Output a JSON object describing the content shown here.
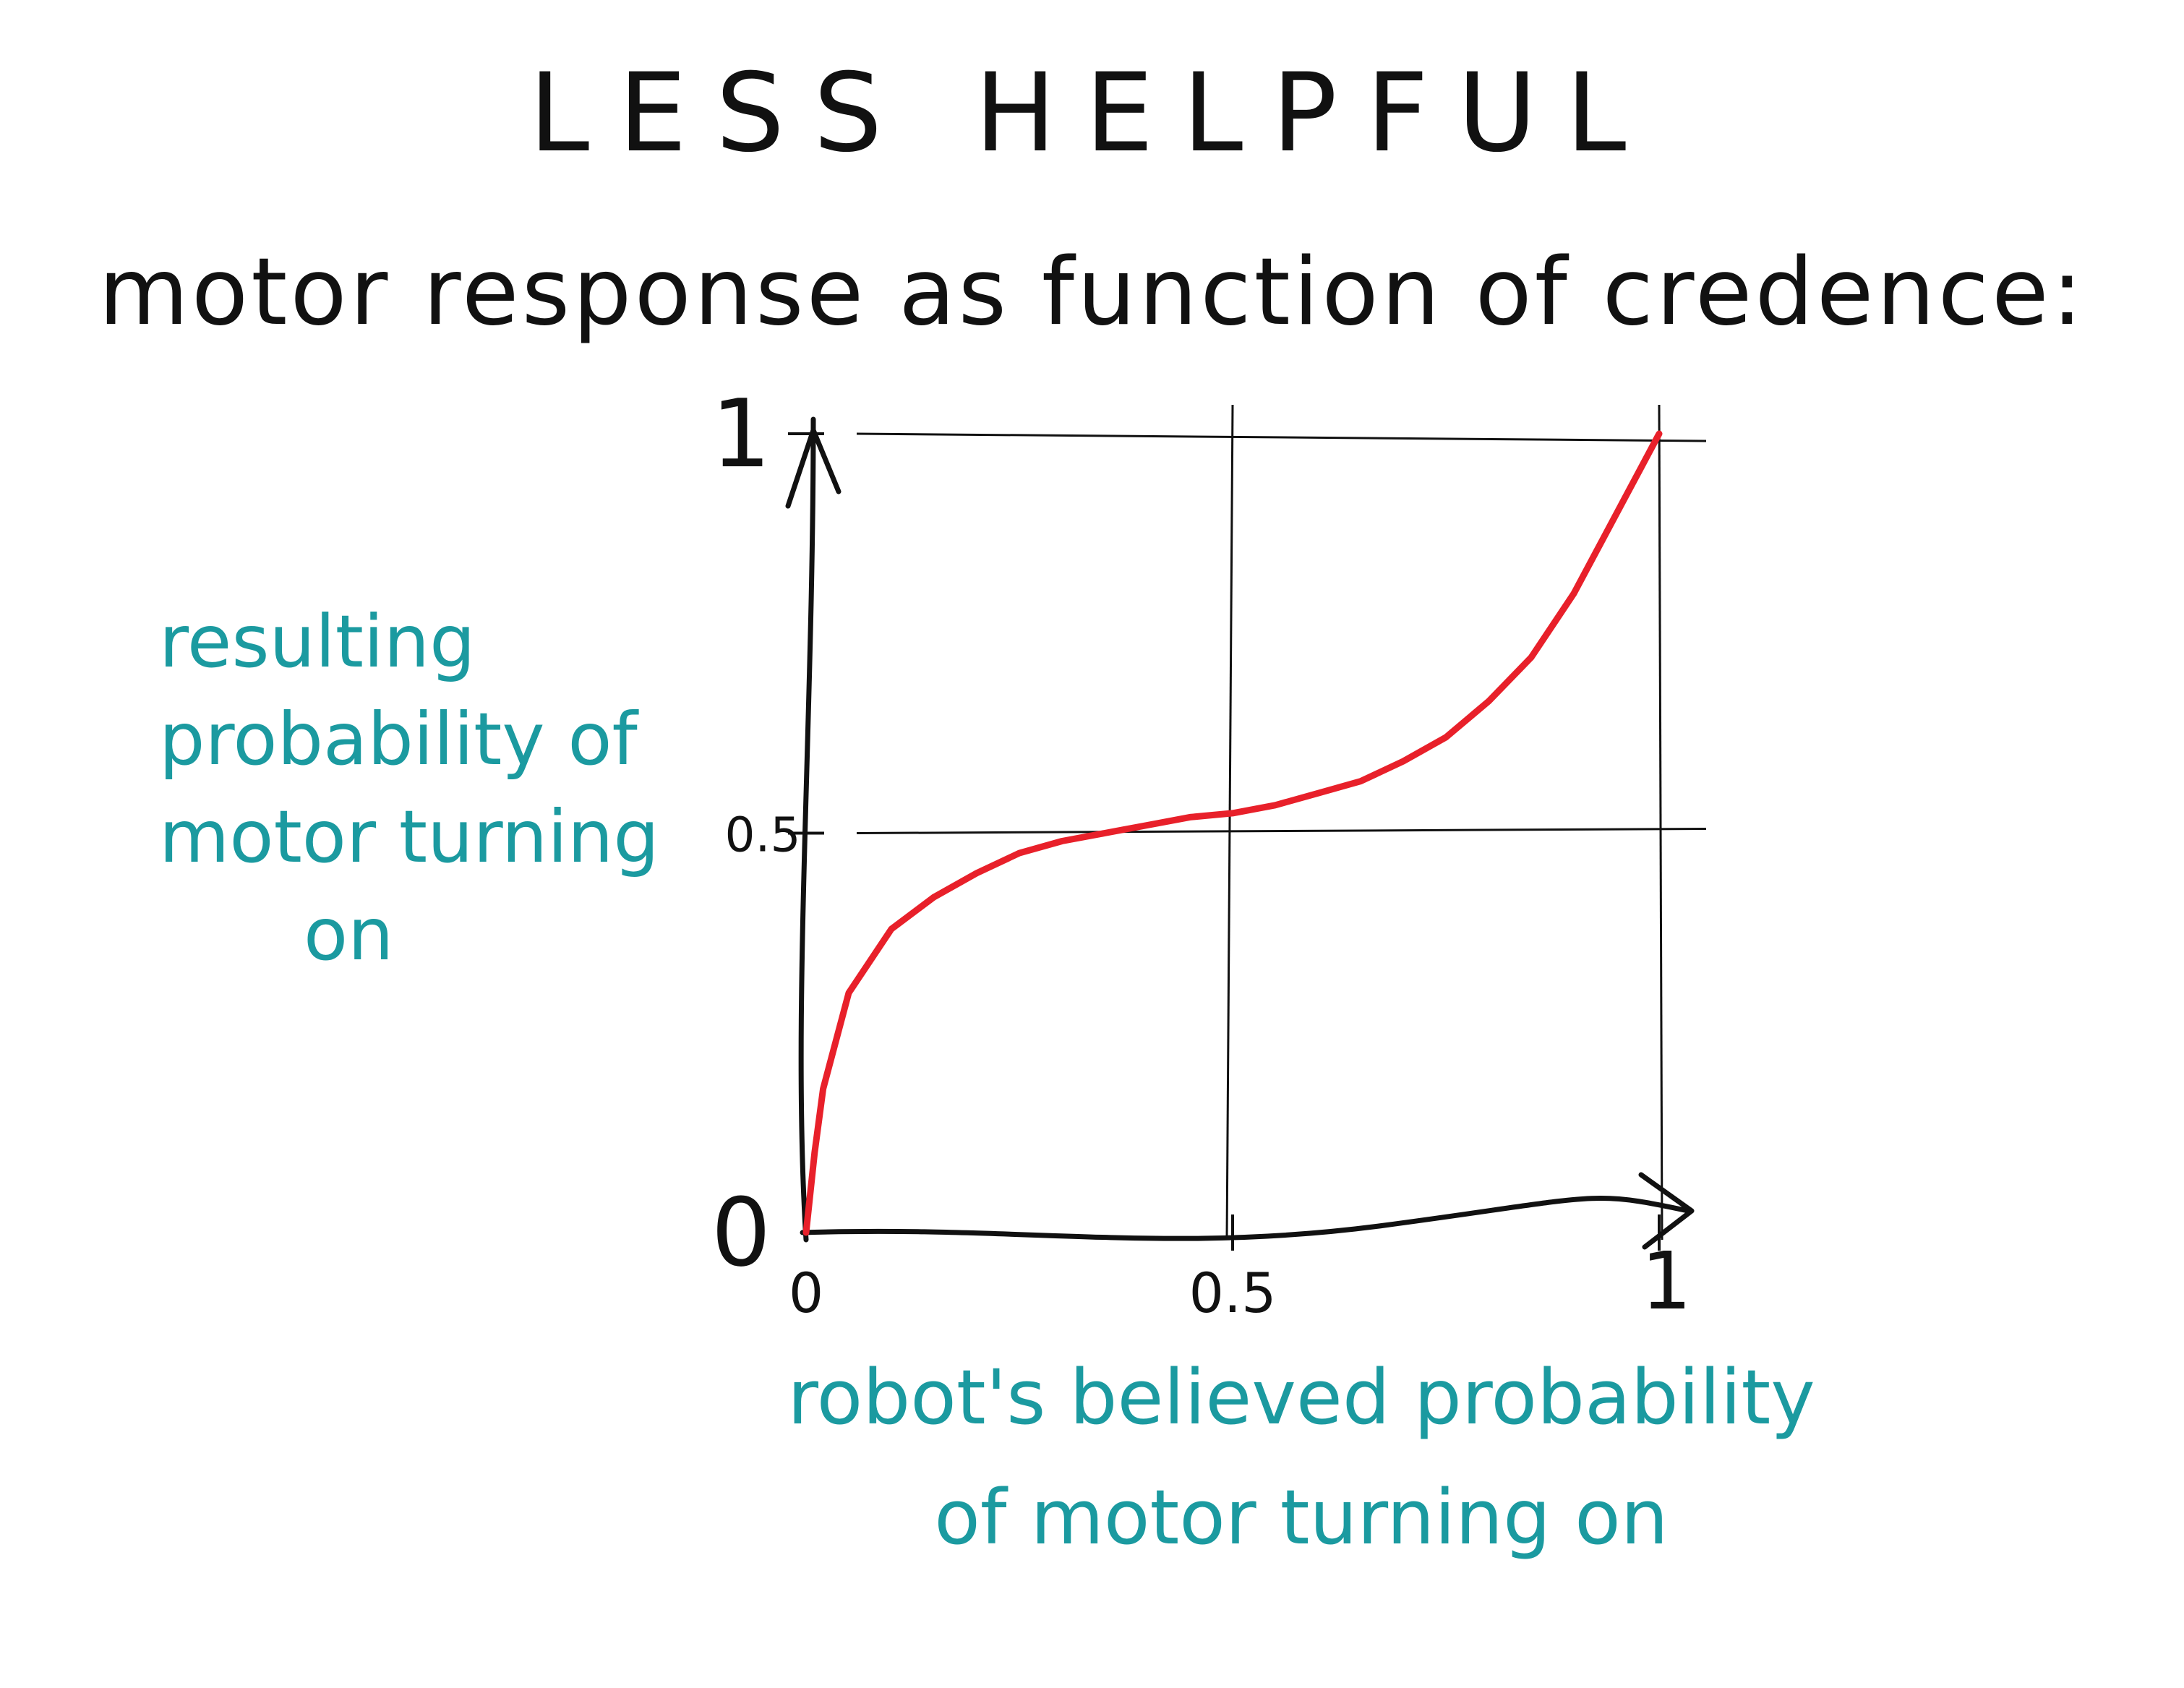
{
  "title": "LESS HELPFUL",
  "subtitle": "motor response as function of credence:",
  "ylabel_lines": [
    "resulting",
    "probability of",
    "motor turning",
    "on"
  ],
  "xlabel_lines": [
    "robot's believed probability",
    "of motor turning on"
  ],
  "colors": {
    "curve": "#e8202a",
    "label": "#1b9aa0",
    "ink": "#111111"
  },
  "chart_data": {
    "type": "line",
    "xlim": [
      0,
      1
    ],
    "ylim": [
      0,
      1
    ],
    "grid": true,
    "xticks": [
      "0",
      "0.5",
      "1"
    ],
    "xtick_values": [
      0,
      0.5,
      1
    ],
    "yticks": [
      "0",
      "0.5",
      "1"
    ],
    "ytick_values": [
      0,
      0.5,
      1
    ],
    "series": [
      {
        "x": [
          0,
          0.01,
          0.02,
          0.05,
          0.1,
          0.15,
          0.2,
          0.25,
          0.3,
          0.35,
          0.4,
          0.45,
          0.5,
          0.55,
          0.6,
          0.65,
          0.7,
          0.75,
          0.8,
          0.85,
          0.9,
          0.93,
          0.96,
          0.98,
          0.99,
          1
        ],
        "y": [
          0,
          0.1,
          0.18,
          0.3,
          0.38,
          0.42,
          0.45,
          0.475,
          0.49,
          0.5,
          0.51,
          0.52,
          0.525,
          0.535,
          0.55,
          0.565,
          0.59,
          0.62,
          0.665,
          0.72,
          0.8,
          0.86,
          0.92,
          0.96,
          0.98,
          1
        ]
      }
    ]
  }
}
